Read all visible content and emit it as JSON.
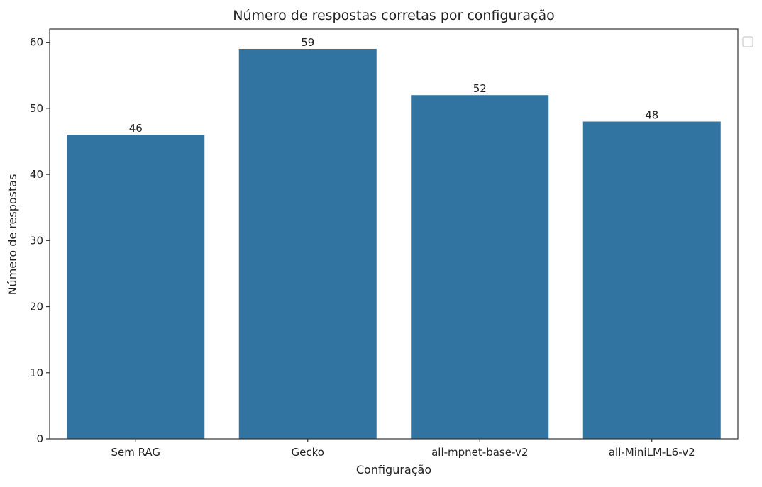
{
  "chart_data": {
    "type": "bar",
    "title": "Número de respostas corretas por configuração",
    "xlabel": "Configuração",
    "ylabel": "Número de respostas",
    "categories": [
      "Sem RAG",
      "Gecko",
      "all-mpnet-base-v2",
      "all-MiniLM-L6-v2"
    ],
    "values": [
      46,
      59,
      52,
      48
    ],
    "data_labels": [
      "46",
      "59",
      "52",
      "48"
    ],
    "yticks": [
      0,
      10,
      20,
      30,
      40,
      50,
      60
    ],
    "ylim": [
      0,
      62
    ],
    "grid": false,
    "legend": "empty legend box, upper-right outside axes",
    "colors": {
      "bar": "#3274a1"
    }
  }
}
